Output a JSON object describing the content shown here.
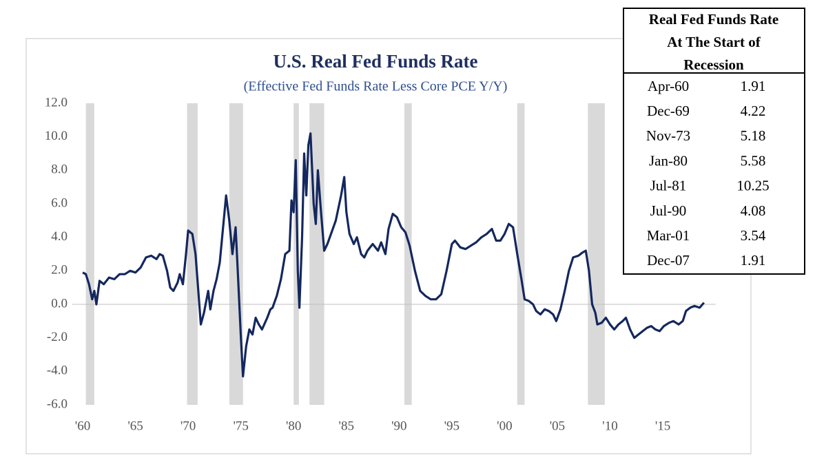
{
  "chart_data": {
    "type": "line",
    "title": "U.S. Real Fed Funds Rate",
    "subtitle": "(Effective Fed Funds Rate Less Core PCE Y/Y)",
    "color": "#14275e",
    "x": [
      1960.0,
      1960.3,
      1960.6,
      1960.9,
      1961.1,
      1961.3,
      1961.6,
      1962,
      1962.5,
      1963,
      1963.5,
      1964,
      1964.5,
      1965,
      1965.5,
      1966,
      1966.5,
      1967,
      1967.3,
      1967.6,
      1968,
      1968.3,
      1968.6,
      1969,
      1969.2,
      1969.5,
      1969.8,
      1970,
      1970.4,
      1970.7,
      1971,
      1971.2,
      1971.5,
      1971.9,
      1972.1,
      1972.4,
      1972.7,
      1973,
      1973.3,
      1973.6,
      1973.9,
      1974.2,
      1974.5,
      1974.7,
      1975,
      1975.2,
      1975.5,
      1975.8,
      1976.1,
      1976.4,
      1976.7,
      1977,
      1977.5,
      1977.8,
      1978,
      1978.4,
      1978.8,
      1979.2,
      1979.6,
      1979.8,
      1980.0,
      1980.2,
      1980.4,
      1980.55,
      1980.8,
      1981.0,
      1981.2,
      1981.4,
      1981.6,
      1981.9,
      1982.1,
      1982.3,
      1982.6,
      1982.9,
      1983.2,
      1983.6,
      1984,
      1984.5,
      1984.8,
      1985,
      1985.3,
      1985.7,
      1986,
      1986.4,
      1986.7,
      1987,
      1987.5,
      1988,
      1988.3,
      1988.7,
      1989,
      1989.4,
      1989.8,
      1990.2,
      1990.6,
      1991,
      1991.5,
      1992,
      1992.5,
      1993,
      1993.5,
      1994,
      1994.5,
      1995,
      1995.3,
      1995.8,
      1996.3,
      1996.8,
      1997.3,
      1997.8,
      1998.3,
      1998.8,
      1999.2,
      1999.6,
      2000,
      2000.4,
      2000.8,
      2001.2,
      2001.6,
      2001.9,
      2002.3,
      2002.7,
      2003,
      2003.4,
      2003.8,
      2004.2,
      2004.6,
      2004.9,
      2005.3,
      2005.7,
      2006.1,
      2006.5,
      2007,
      2007.4,
      2007.7,
      2008,
      2008.3,
      2008.6,
      2008.8,
      2009.2,
      2009.6,
      2010,
      2010.4,
      2010.8,
      2011.2,
      2011.5,
      2011.9,
      2012.3,
      2012.7,
      2013.1,
      2013.5,
      2013.9,
      2014.3,
      2014.7,
      2015.1,
      2015.6,
      2016,
      2016.5,
      2016.9,
      2017.2,
      2017.6,
      2018,
      2018.5,
      2018.9
    ],
    "values": [
      1.9,
      1.8,
      1.2,
      0.3,
      0.8,
      0.0,
      1.4,
      1.2,
      1.6,
      1.5,
      1.8,
      1.8,
      2.0,
      1.9,
      2.2,
      2.8,
      2.9,
      2.7,
      3.0,
      2.9,
      2.0,
      1.0,
      0.8,
      1.3,
      1.8,
      1.2,
      3.0,
      4.4,
      4.2,
      3.0,
      0.5,
      -1.2,
      -0.5,
      0.8,
      -0.3,
      0.8,
      1.5,
      2.5,
      4.5,
      6.5,
      5.0,
      3.0,
      4.6,
      2.0,
      -2.0,
      -4.3,
      -2.5,
      -1.5,
      -1.8,
      -0.8,
      -1.2,
      -1.5,
      -0.8,
      -0.3,
      -0.2,
      0.5,
      1.5,
      3.0,
      3.2,
      6.2,
      5.5,
      8.6,
      2.0,
      -0.2,
      4.0,
      9.0,
      6.5,
      9.5,
      10.2,
      6.0,
      4.8,
      8.0,
      5.5,
      3.2,
      3.6,
      4.3,
      5.0,
      6.5,
      7.6,
      5.5,
      4.2,
      3.6,
      4.0,
      3.0,
      2.8,
      3.2,
      3.6,
      3.2,
      3.7,
      3.0,
      4.5,
      5.4,
      5.2,
      4.6,
      4.3,
      3.5,
      2.0,
      0.8,
      0.5,
      0.3,
      0.3,
      0.6,
      2.0,
      3.6,
      3.8,
      3.4,
      3.3,
      3.5,
      3.7,
      4.0,
      4.2,
      4.5,
      3.8,
      3.8,
      4.2,
      4.8,
      4.6,
      3.0,
      1.5,
      0.3,
      0.2,
      0.0,
      -0.4,
      -0.6,
      -0.3,
      -0.4,
      -0.6,
      -1.0,
      -0.3,
      0.8,
      2.0,
      2.8,
      2.9,
      3.1,
      3.2,
      2.0,
      0.0,
      -0.5,
      -1.2,
      -1.1,
      -0.8,
      -1.2,
      -1.5,
      -1.2,
      -1.0,
      -0.8,
      -1.5,
      -2.0,
      -1.8,
      -1.6,
      -1.4,
      -1.3,
      -1.5,
      -1.6,
      -1.3,
      -1.1,
      -1.0,
      -1.2,
      -1.0,
      -0.4,
      -0.2,
      -0.1,
      -0.2,
      0.1
    ],
    "recessions": [
      [
        1960.3,
        1961.1
      ],
      [
        1969.9,
        1970.9
      ],
      [
        1973.9,
        1975.2
      ],
      [
        1980.0,
        1980.5
      ],
      [
        1981.5,
        1982.9
      ],
      [
        1990.5,
        1991.2
      ],
      [
        2001.2,
        2001.9
      ],
      [
        2007.9,
        2009.5
      ]
    ],
    "xlim": [
      1959,
      2020
    ],
    "xticks": [
      {
        "value": 1960,
        "label": "'60"
      },
      {
        "value": 1965,
        "label": "'65"
      },
      {
        "value": 1970,
        "label": "'70"
      },
      {
        "value": 1975,
        "label": "'75"
      },
      {
        "value": 1980,
        "label": "'80"
      },
      {
        "value": 1985,
        "label": "'85"
      },
      {
        "value": 1990,
        "label": "'90"
      },
      {
        "value": 1995,
        "label": "'95"
      },
      {
        "value": 2000,
        "label": "'00"
      },
      {
        "value": 2005,
        "label": "'05"
      },
      {
        "value": 2010,
        "label": "'10"
      },
      {
        "value": 2015,
        "label": "'15"
      }
    ],
    "ylim": [
      -6,
      12
    ],
    "yticks": [
      {
        "value": 12,
        "label": "12.0"
      },
      {
        "value": 10,
        "label": "10.0"
      },
      {
        "value": 8,
        "label": "8.0"
      },
      {
        "value": 6,
        "label": "6.0"
      },
      {
        "value": 4,
        "label": "4.0"
      },
      {
        "value": 2,
        "label": "2.0"
      },
      {
        "value": 0,
        "label": "0.0"
      },
      {
        "value": -2,
        "label": "-2.0"
      },
      {
        "value": -4,
        "label": "-4.0"
      },
      {
        "value": -6,
        "label": "-6.0"
      }
    ]
  },
  "table": {
    "title_lines": [
      "Real Fed Funds Rate",
      "At The Start of",
      "Recession"
    ],
    "rows": [
      [
        "Apr-60",
        1.91
      ],
      [
        "Dec-69",
        4.22
      ],
      [
        "Nov-73",
        5.18
      ],
      [
        "Jan-80",
        5.58
      ],
      [
        "Jul-81",
        10.25
      ],
      [
        "Jul-90",
        4.08
      ],
      [
        "Mar-01",
        3.54
      ],
      [
        "Dec-07",
        1.91
      ]
    ]
  }
}
